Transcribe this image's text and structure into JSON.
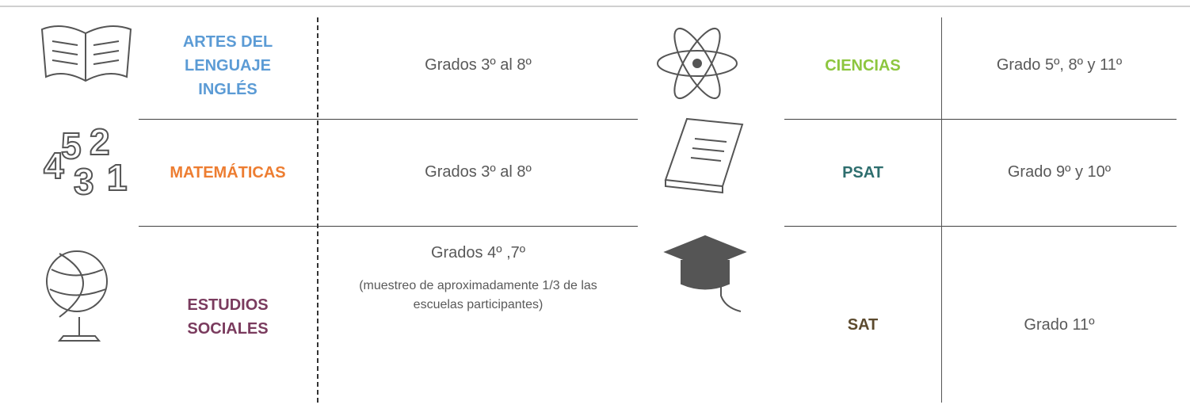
{
  "left": {
    "rows": [
      {
        "subject": "ARTES DEL LENGUAJE INGLÉS",
        "grades": "Grados 3º  al 8º"
      },
      {
        "subject": "MATEMÁTICAS",
        "grades": "Grados 3º  al 8º"
      },
      {
        "subject": "ESTUDIOS SOCIALES",
        "grades": "Grados 4º ,7º",
        "note": "(muestreo de aproximadamente 1/3 de las escuelas participantes)"
      }
    ]
  },
  "right": {
    "rows": [
      {
        "subject": "CIENCIAS",
        "grades": "Grado 5º, 8º y 11º"
      },
      {
        "subject": "PSAT",
        "grades": "Grado 9º y 10º"
      },
      {
        "subject": "SAT",
        "grades": "Grado 11º"
      }
    ]
  }
}
